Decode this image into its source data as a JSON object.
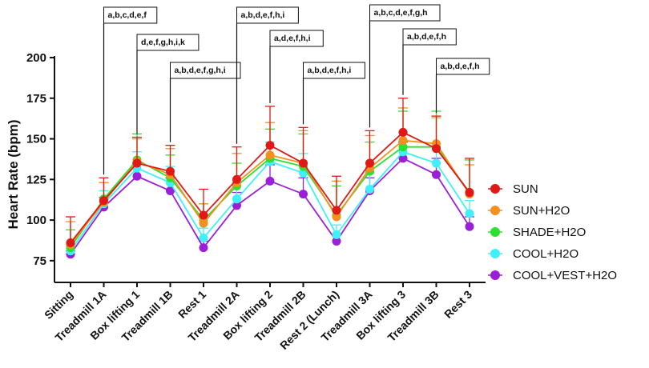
{
  "chart_data": {
    "type": "line",
    "title": "",
    "xlabel": "",
    "ylabel": "Heart  Rate  (bpm)",
    "ylim": [
      70,
      200
    ],
    "yticks": [
      75,
      100,
      125,
      150,
      175,
      200
    ],
    "categories": [
      "Sitting",
      "Treadmill 1A",
      "Box lifting 1",
      "Treadmill 1B",
      "Rest 1",
      "Treadmill 2A",
      "Box lifting 2",
      "Treadmill 2B",
      "Rest 2 (Lunch)",
      "Treadmill 3A",
      "Box lifting 3",
      "Treadmill 3B",
      "Rest 3"
    ],
    "series": [
      {
        "name": "COOL+VEST+H2O",
        "color": "#9b1fd8",
        "values": [
          79,
          108,
          127,
          118,
          83,
          109,
          124,
          116,
          87,
          118,
          138,
          128,
          96
        ],
        "err": [
          2,
          6,
          8,
          8,
          4,
          8,
          10,
          10,
          4,
          8,
          10,
          10,
          6
        ]
      },
      {
        "name": "COOL+H2O",
        "color": "#3ff0f8",
        "values": [
          81,
          110,
          132,
          123,
          89,
          113,
          136,
          129,
          91,
          119,
          142,
          135,
          104
        ],
        "err": [
          3,
          8,
          10,
          10,
          6,
          10,
          12,
          12,
          6,
          10,
          12,
          12,
          8
        ]
      },
      {
        "name": "SHADE+H2O",
        "color": "#2ee02e",
        "values": [
          83,
          113,
          137,
          126,
          100,
          121,
          138,
          133,
          103,
          130,
          145,
          145,
          117
        ],
        "err": [
          11,
          10,
          16,
          14,
          10,
          14,
          18,
          20,
          18,
          18,
          22,
          22,
          20
        ]
      },
      {
        "name": "SUN+H2O",
        "color": "#f5901f",
        "values": [
          85,
          111,
          136,
          128,
          98,
          123,
          140,
          135,
          102,
          132,
          149,
          147,
          116
        ],
        "err": [
          14,
          12,
          14,
          16,
          12,
          18,
          20,
          20,
          22,
          20,
          20,
          16,
          18
        ]
      },
      {
        "name": "SUN",
        "color": "#e01818",
        "values": [
          86,
          112,
          135,
          130,
          103,
          125,
          146,
          135,
          106,
          135,
          154,
          144,
          117
        ],
        "err": [
          16,
          14,
          16,
          16,
          16,
          20,
          24,
          22,
          21,
          20,
          21,
          20,
          21
        ]
      }
    ],
    "legend_order": [
      "SUN",
      "SUN+H2O",
      "SHADE+H2O",
      "COOL+H2O",
      "COOL+VEST+H2O"
    ],
    "annotations": [
      {
        "category": "Treadmill 1A",
        "text": "a,b,c,d,e,f"
      },
      {
        "category": "Box lifting 1",
        "text": "d,e,f,g,h,i,k"
      },
      {
        "category": "Treadmill 1B",
        "text": "a,b,d,e,f,g,h,i"
      },
      {
        "category": "Treadmill 2A",
        "text": "a,b,d,e,f,h,i"
      },
      {
        "category": "Box lifting 2",
        "text": "a,d,e,f,h,i"
      },
      {
        "category": "Treadmill 2B",
        "text": "a,b,d,e,f,h,i"
      },
      {
        "category": "Treadmill 3A",
        "text": "a,b,c,d,e,f,g,h"
      },
      {
        "category": "Box lifting 3",
        "text": "a,b,d,e,f,h"
      },
      {
        "category": "Treadmill 3B",
        "text": "a,b,d,e,f,h"
      }
    ],
    "grid": false,
    "legend_position": "right"
  }
}
